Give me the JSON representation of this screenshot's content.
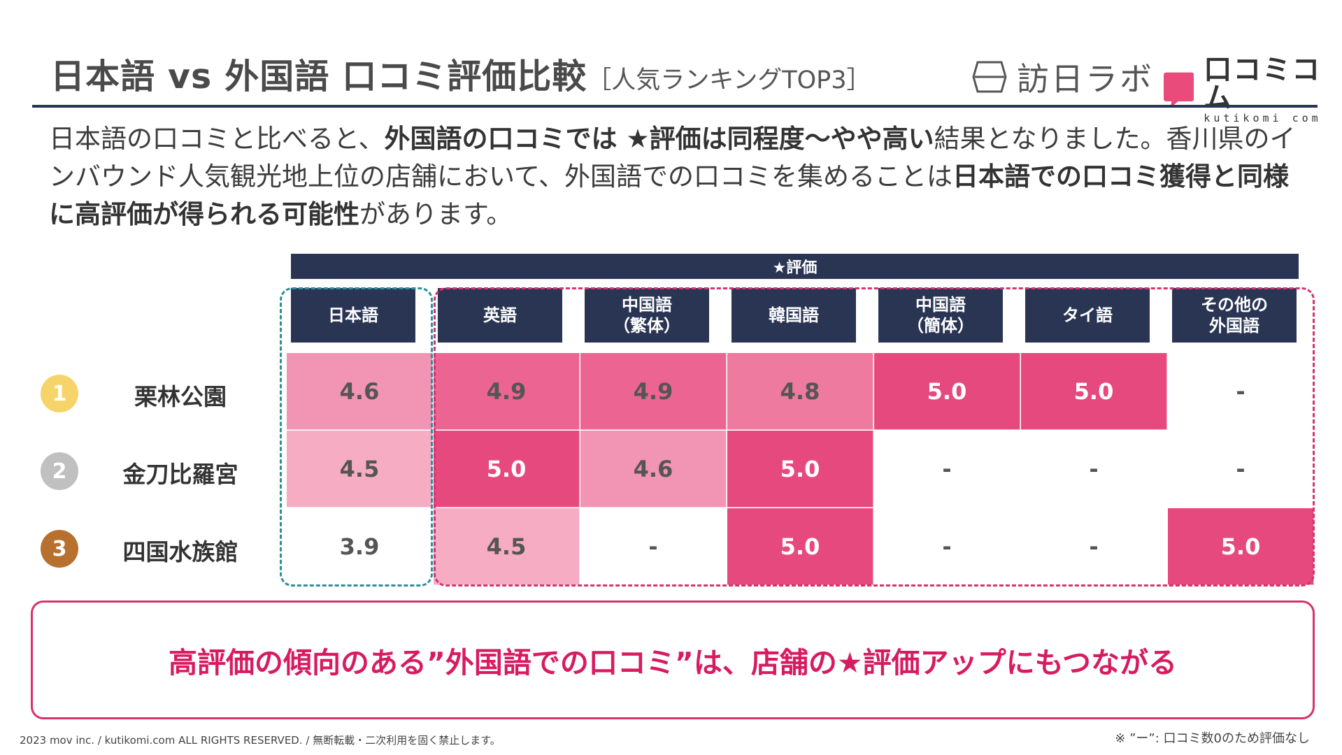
{
  "title": {
    "main": "日本語 vs 外国語 口コミ評価比較",
    "sub": "［人気ランキングTOP3］"
  },
  "logos": {
    "hounichi": "訪日ラボ",
    "kutikomi_jp": "口コミコム",
    "kutikomi_en": "kutikomi com"
  },
  "intro": {
    "p1": "日本語の口コミと比べると、",
    "p2": "外国語の口コミでは ★評価は同程度〜やや高い",
    "p3": "結果となりました。香川県のインバウンド人気観光地上位の店舗において、外国語での口コミを集めることは",
    "p4": "日本語での口コミ獲得と同様に高評価が得られる可能性",
    "p5": "があります。"
  },
  "table": {
    "group_header": "★評価",
    "columns": [
      "日本語",
      "英語",
      "中国語\n（繁体）",
      "韓国語",
      "中国語\n（簡体）",
      "タイ語",
      "その他の\n外国語"
    ],
    "rows": [
      {
        "rank": "1",
        "rank_color": "#f7d469",
        "name": "栗林公園",
        "values": [
          "4.6",
          "4.9",
          "4.9",
          "4.8",
          "5.0",
          "5.0",
          "-"
        ]
      },
      {
        "rank": "2",
        "rank_color": "#c0c0c0",
        "name": "金刀比羅宮",
        "values": [
          "4.5",
          "5.0",
          "4.6",
          "5.0",
          "-",
          "-",
          "-"
        ]
      },
      {
        "rank": "3",
        "rank_color": "#b8702f",
        "name": "四国水族館",
        "values": [
          "3.9",
          "4.5",
          "-",
          "5.0",
          "-",
          "-",
          "5.0"
        ]
      }
    ]
  },
  "conclusion": "高評価の傾向のある”外国語での口コミ”は、店舗の★評価アップにもつながる",
  "footer": {
    "copyright": "2023 mov inc. / kutikomi.com ALL RIGHTS RESERVED. / 無断転載・二次利用を固く禁止します。",
    "note": "※ ”ー”: 口コミ数0のため評価なし"
  }
}
